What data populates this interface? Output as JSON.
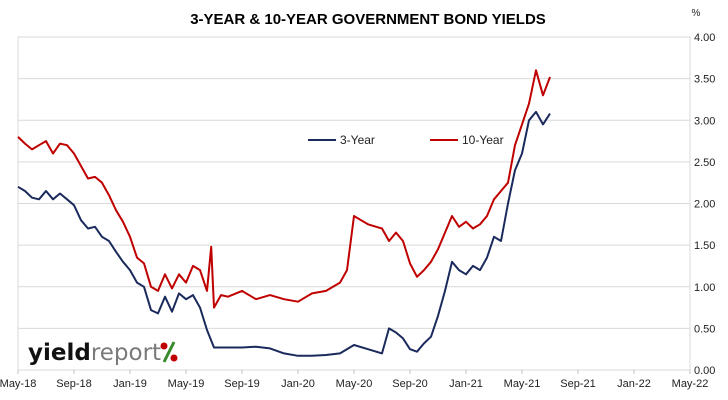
{
  "chart_data": {
    "type": "line",
    "title": "3-YEAR & 10-YEAR GOVERNMENT BOND YIELDS",
    "ylabel": "%",
    "ylim": [
      0,
      4
    ],
    "y_ticks": [
      "0.00",
      "0.50",
      "1.00",
      "1.50",
      "2.00",
      "2.50",
      "3.00",
      "3.50",
      "4.00"
    ],
    "x_ticks": [
      "May-18",
      "Sep-18",
      "Jan-19",
      "May-19",
      "Sep-19",
      "Jan-20",
      "May-20",
      "Sep-20",
      "Jan-21",
      "May-21",
      "Sep-21",
      "Jan-22",
      "May-22"
    ],
    "grid": "horizontal",
    "legend": "top-center",
    "series": [
      {
        "name": "3-Year",
        "color": "#1b2a5c",
        "points": [
          [
            0,
            2.2
          ],
          [
            0.5,
            2.15
          ],
          [
            1,
            2.07
          ],
          [
            1.5,
            2.05
          ],
          [
            2,
            2.15
          ],
          [
            2.5,
            2.05
          ],
          [
            3,
            2.12
          ],
          [
            3.5,
            2.05
          ],
          [
            4,
            1.98
          ],
          [
            4.5,
            1.8
          ],
          [
            5,
            1.7
          ],
          [
            5.5,
            1.72
          ],
          [
            6,
            1.6
          ],
          [
            6.5,
            1.55
          ],
          [
            7,
            1.42
          ],
          [
            7.5,
            1.3
          ],
          [
            8,
            1.2
          ],
          [
            8.5,
            1.05
          ],
          [
            9,
            1.0
          ],
          [
            9.5,
            0.72
          ],
          [
            10,
            0.68
          ],
          [
            10.5,
            0.88
          ],
          [
            11,
            0.7
          ],
          [
            11.5,
            0.92
          ],
          [
            12,
            0.85
          ],
          [
            12.5,
            0.9
          ],
          [
            13,
            0.75
          ],
          [
            13.5,
            0.48
          ],
          [
            14,
            0.27
          ],
          [
            15,
            0.27
          ],
          [
            16,
            0.27
          ],
          [
            17,
            0.28
          ],
          [
            18,
            0.26
          ],
          [
            19,
            0.2
          ],
          [
            20,
            0.17
          ],
          [
            21,
            0.17
          ],
          [
            22,
            0.18
          ],
          [
            23,
            0.2
          ],
          [
            24,
            0.3
          ],
          [
            25,
            0.25
          ],
          [
            26,
            0.2
          ],
          [
            26.5,
            0.5
          ],
          [
            27,
            0.45
          ],
          [
            27.5,
            0.38
          ],
          [
            28,
            0.25
          ],
          [
            28.5,
            0.22
          ],
          [
            29,
            0.32
          ],
          [
            29.5,
            0.4
          ],
          [
            30,
            0.65
          ],
          [
            30.5,
            0.95
          ],
          [
            31,
            1.3
          ],
          [
            31.5,
            1.2
          ],
          [
            32,
            1.15
          ],
          [
            32.5,
            1.25
          ],
          [
            33,
            1.2
          ],
          [
            33.5,
            1.35
          ],
          [
            34,
            1.6
          ],
          [
            34.5,
            1.55
          ],
          [
            35,
            2.0
          ],
          [
            35.5,
            2.4
          ],
          [
            36,
            2.6
          ],
          [
            36.5,
            3.0
          ],
          [
            37,
            3.1
          ],
          [
            37.5,
            2.95
          ],
          [
            38,
            3.08
          ]
        ]
      },
      {
        "name": "10-Year",
        "color": "#c00000",
        "points": [
          [
            0,
            2.8
          ],
          [
            0.5,
            2.72
          ],
          [
            1,
            2.65
          ],
          [
            1.5,
            2.7
          ],
          [
            2,
            2.75
          ],
          [
            2.5,
            2.6
          ],
          [
            3,
            2.72
          ],
          [
            3.5,
            2.7
          ],
          [
            4,
            2.6
          ],
          [
            4.5,
            2.45
          ],
          [
            5,
            2.3
          ],
          [
            5.5,
            2.32
          ],
          [
            6,
            2.25
          ],
          [
            6.5,
            2.1
          ],
          [
            7,
            1.92
          ],
          [
            7.5,
            1.78
          ],
          [
            8,
            1.6
          ],
          [
            8.5,
            1.35
          ],
          [
            9,
            1.28
          ],
          [
            9.5,
            1.0
          ],
          [
            10,
            0.95
          ],
          [
            10.5,
            1.15
          ],
          [
            11,
            0.98
          ],
          [
            11.5,
            1.15
          ],
          [
            12,
            1.05
          ],
          [
            12.5,
            1.25
          ],
          [
            13,
            1.2
          ],
          [
            13.5,
            0.95
          ],
          [
            13.8,
            1.48
          ],
          [
            14,
            0.75
          ],
          [
            14.5,
            0.9
          ],
          [
            15,
            0.88
          ],
          [
            16,
            0.95
          ],
          [
            17,
            0.85
          ],
          [
            18,
            0.9
          ],
          [
            19,
            0.85
          ],
          [
            20,
            0.82
          ],
          [
            21,
            0.92
          ],
          [
            22,
            0.95
          ],
          [
            23,
            1.05
          ],
          [
            23.5,
            1.2
          ],
          [
            24,
            1.85
          ],
          [
            24.5,
            1.8
          ],
          [
            25,
            1.75
          ],
          [
            26,
            1.7
          ],
          [
            26.5,
            1.55
          ],
          [
            27,
            1.65
          ],
          [
            27.5,
            1.55
          ],
          [
            28,
            1.28
          ],
          [
            28.5,
            1.12
          ],
          [
            29,
            1.2
          ],
          [
            29.5,
            1.3
          ],
          [
            30,
            1.45
          ],
          [
            30.5,
            1.65
          ],
          [
            31,
            1.85
          ],
          [
            31.5,
            1.72
          ],
          [
            32,
            1.78
          ],
          [
            32.5,
            1.7
          ],
          [
            33,
            1.75
          ],
          [
            33.5,
            1.85
          ],
          [
            34,
            2.05
          ],
          [
            34.5,
            2.15
          ],
          [
            35,
            2.25
          ],
          [
            35.5,
            2.7
          ],
          [
            36,
            2.95
          ],
          [
            36.5,
            3.2
          ],
          [
            37,
            3.6
          ],
          [
            37.5,
            3.3
          ],
          [
            38,
            3.52
          ]
        ]
      }
    ]
  },
  "logo": {
    "text_bold": "yield",
    "text_regular": "report",
    "symbol": "%",
    "symbol_colors": [
      "#c00000",
      "#3a8a2e"
    ]
  }
}
